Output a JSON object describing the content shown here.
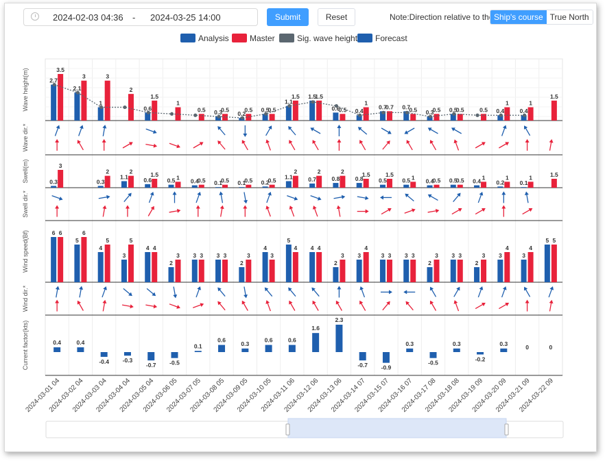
{
  "toolbar": {
    "start_date": "2024-02-03 04:36",
    "separator": "-",
    "end_date": "2024-03-25 14:00",
    "submit_label": "Submit",
    "reset_label": "Reset",
    "note": "Note:Direction relative to the",
    "direction_options": [
      "Ship's course",
      "True North"
    ],
    "direction_selected": "Ship's course",
    "calendar_icon": "calendar-icon"
  },
  "colors": {
    "analysis": "#1f5fae",
    "master": "#e8223b",
    "sig": "#5b6770",
    "forecast": "#1f5fae"
  },
  "chart_data": {
    "type": "bar",
    "legend": [
      "Analysis",
      "Master",
      "Sig. wave height",
      "Forecast"
    ],
    "legend_position": "top-center",
    "categories": [
      "2024-03-01 04",
      "2024-03-02 04",
      "2024-03-03 04",
      "2024-03-04 04",
      "2024-03-05 04",
      "2024-03-06 05",
      "2024-03-07 05",
      "2024-03-08 05",
      "2024-03-09 05",
      "2024-03-10 05",
      "2024-03-11 06",
      "2024-03-12 06",
      "2024-03-13 06",
      "2024-03-14 07",
      "2024-03-15 07",
      "2024-03-16 07",
      "2024-03-17 08",
      "2024-03-18 08",
      "2024-03-19 09",
      "2024-03-20 09",
      "2024-03-21 09",
      "2024-03-22 09"
    ],
    "wave_height": {
      "ylabel": "Wave height(m)",
      "analysis": [
        2.7,
        2.1,
        1,
        null,
        0.6,
        null,
        null,
        0.3,
        0.2,
        0.5,
        1.1,
        1.5,
        0.6,
        0.4,
        0.7,
        0.7,
        0.3,
        0.5,
        null,
        0.4,
        0.4,
        null
      ],
      "master": [
        3.5,
        3,
        3,
        2,
        1.5,
        1.0,
        0.5,
        0.5,
        0.5,
        0.5,
        1.5,
        1.5,
        0.5,
        1.0,
        0.7,
        0.5,
        0.5,
        0.5,
        0.5,
        1,
        1,
        1.5
      ],
      "sig": [
        2.7,
        2.1,
        1,
        1,
        0.6,
        0.5,
        0.4,
        0.3,
        0.2,
        0.5,
        1.1,
        1.4,
        1.1,
        0.4,
        0.6,
        0.6,
        0.3,
        0.5,
        0.4,
        0.4,
        0.4,
        null
      ]
    },
    "wave_dir": {
      "ylabel": "Wave dir.*",
      "analysis": [
        20,
        20,
        10,
        null,
        110,
        null,
        null,
        320,
        180,
        30,
        320,
        300,
        0,
        310,
        120,
        240,
        300,
        300,
        null,
        20,
        330,
        null
      ],
      "master": [
        0,
        330,
        0,
        60,
        100,
        110,
        60,
        320,
        330,
        340,
        330,
        330,
        0,
        330,
        40,
        330,
        330,
        340,
        60,
        60,
        0,
        10
      ]
    },
    "swell": {
      "ylabel": "Swell(m)",
      "analysis": [
        0.3,
        null,
        0.3,
        1.1,
        0.6,
        0.5,
        0.4,
        0.1,
        0.1,
        0.2,
        1.1,
        0.7,
        0.8,
        0.8,
        0.5,
        0.5,
        0.4,
        0.5,
        0.4,
        0.2,
        0.1,
        null
      ],
      "master": [
        3,
        null,
        2,
        2,
        1.5,
        1.0,
        0.5,
        0.5,
        0.5,
        0.5,
        2.0,
        2.0,
        2.0,
        1.5,
        1.5,
        1.0,
        0.5,
        0.5,
        1.0,
        1,
        1,
        1.5
      ]
    },
    "swell_dir": {
      "ylabel": "Swell dir.*",
      "analysis": [
        110,
        null,
        80,
        40,
        20,
        0,
        20,
        350,
        170,
        20,
        110,
        110,
        80,
        100,
        270,
        310,
        300,
        40,
        20,
        0,
        350,
        null
      ],
      "master": [
        0,
        null,
        10,
        0,
        30,
        80,
        0,
        10,
        0,
        340,
        340,
        340,
        350,
        90,
        60,
        70,
        80,
        60,
        60,
        0,
        60,
        null
      ]
    },
    "wind": {
      "ylabel": "Wind speed(Bf)",
      "analysis": [
        6,
        5,
        4,
        3,
        4,
        2,
        3,
        3,
        2,
        4,
        5,
        4,
        2,
        3,
        3,
        3,
        2,
        3,
        2,
        3,
        3,
        5
      ],
      "master": [
        6,
        6,
        5,
        5,
        4,
        3,
        3,
        3,
        3,
        3,
        4,
        4,
        3,
        4,
        3,
        3,
        3,
        3,
        3,
        4,
        4,
        5
      ]
    },
    "wind_dir": {
      "ylabel": "Wind dir.*",
      "analysis": [
        10,
        10,
        20,
        130,
        130,
        170,
        20,
        320,
        170,
        320,
        320,
        320,
        0,
        340,
        90,
        270,
        330,
        30,
        20,
        20,
        330,
        20
      ],
      "master": [
        0,
        330,
        10,
        100,
        100,
        110,
        70,
        320,
        330,
        340,
        330,
        330,
        330,
        330,
        40,
        320,
        330,
        340,
        60,
        60,
        0,
        10
      ]
    },
    "current": {
      "ylabel": "Current factor(kts)",
      "values": [
        0.4,
        0.4,
        -0.4,
        -0.3,
        -0.7,
        -0.5,
        0.1,
        0.6,
        0.3,
        0.6,
        0.6,
        1.6,
        2.3,
        -0.7,
        -0.9,
        0.3,
        -0.5,
        0.3,
        -0.2,
        0.3,
        0,
        0
      ]
    }
  }
}
